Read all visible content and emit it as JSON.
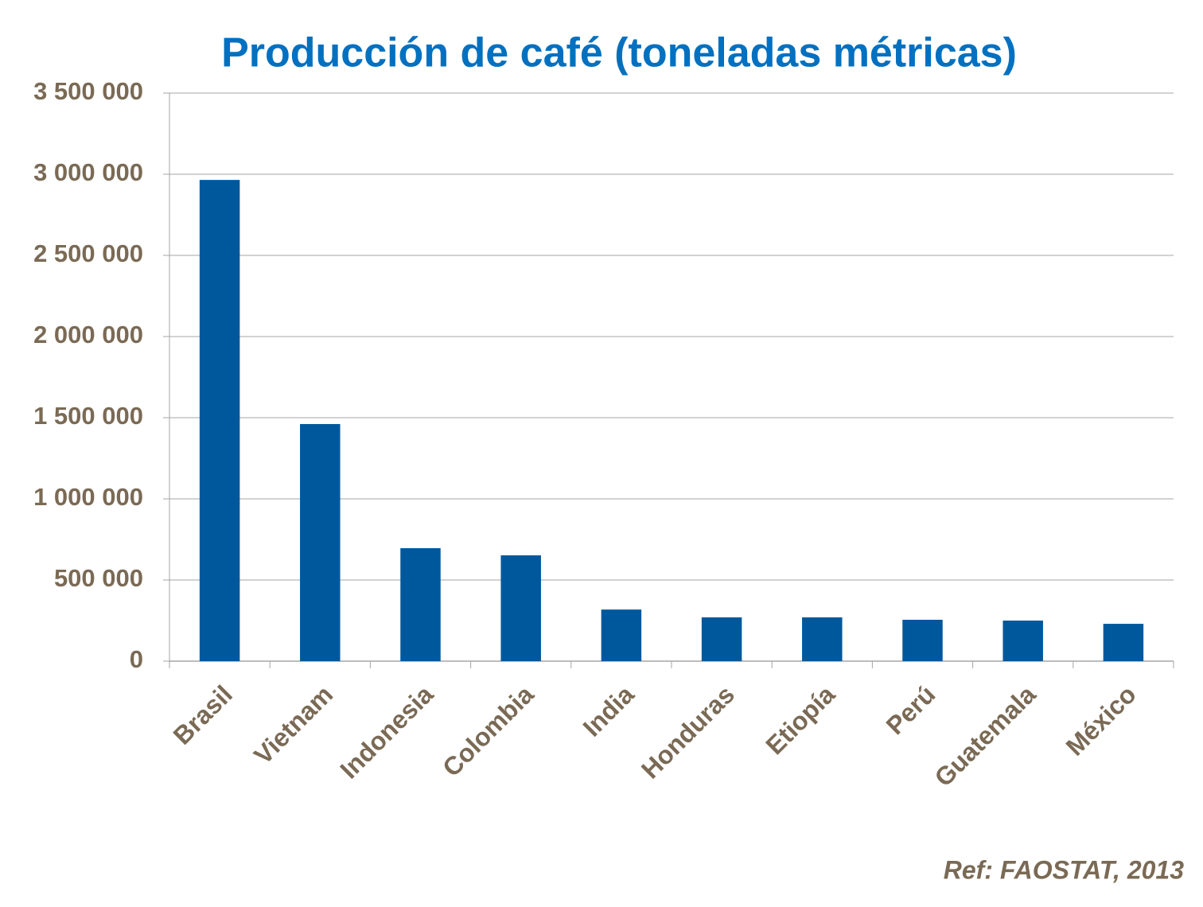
{
  "chart_data": {
    "type": "bar",
    "title": "Producción de café (toneladas métricas)",
    "categories": [
      "Brasil",
      "Vietnam",
      "Indonesia",
      "Colombia",
      "India",
      "Honduras",
      "Etiopía",
      "Perú",
      "Guatemala",
      "México"
    ],
    "values": [
      2965000,
      1461000,
      696000,
      652000,
      318000,
      270000,
      270000,
      255000,
      250000,
      230000
    ],
    "color": "#00589c",
    "ylim": [
      0,
      3500000
    ],
    "yticks": [
      0,
      {
        "value": 500000,
        "label": "500 000"
      },
      {
        "value": 1000000,
        "label": "1 000 000"
      },
      {
        "value": 1500000,
        "label": "1 500 000"
      },
      {
        "value": 2000000,
        "label": "2 000 000"
      },
      {
        "value": 2500000,
        "label": "2 500 000"
      },
      {
        "value": 3000000,
        "label": "3 000 000"
      },
      {
        "value": 3500000,
        "label": "3 500 000"
      }
    ],
    "grid": true,
    "source": "Ref: FAOSTAT, 2013"
  }
}
